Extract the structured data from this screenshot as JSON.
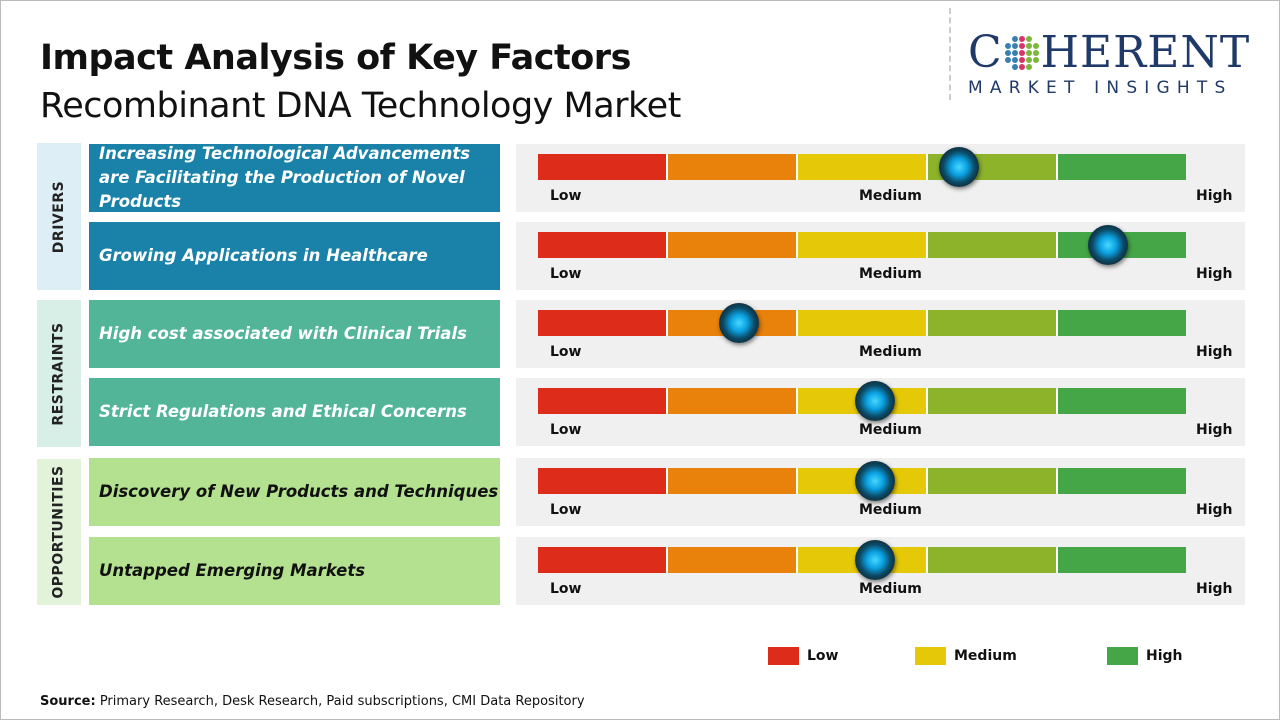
{
  "title": "Impact Analysis of Key Factors",
  "subtitle": "Recombinant DNA Technology Market",
  "logo": {
    "top": "COHERENT",
    "bottom": "MARKET INSIGHTS"
  },
  "scale_labels": {
    "low": "Low",
    "medium": "Medium",
    "high": "High"
  },
  "segment_colors": [
    "#dd2c1a",
    "#e8820a",
    "#e5c908",
    "#8db32a",
    "#44a647"
  ],
  "categories": [
    {
      "label": "DRIVERS",
      "bg": "#deeef6",
      "factor_bg": "#1a82a8",
      "factor_color": "#ffffff"
    },
    {
      "label": "RESTRAINTS",
      "bg": "#d8efe8",
      "factor_bg": "#52b598",
      "factor_color": "#ffffff"
    },
    {
      "label": "OPPORTUNITIES",
      "bg": "#e3f3da",
      "factor_bg": "#b4e18f",
      "factor_color": "#111111"
    }
  ],
  "factors": [
    {
      "category": "DRIVERS",
      "text": "Increasing Technological Advancements are Facilitating the Production of Novel Products",
      "impact_level": 0.65
    },
    {
      "category": "DRIVERS",
      "text": "Growing Applications in Healthcare",
      "impact_level": 0.88
    },
    {
      "category": "RESTRAINTS",
      "text": "High cost associated  with Clinical Trials",
      "impact_level": 0.31
    },
    {
      "category": "RESTRAINTS",
      "text": "Strict Regulations  and Ethical Concerns",
      "impact_level": 0.52
    },
    {
      "category": "OPPORTUNITIES",
      "text": "Discovery of New Products and Techniques",
      "impact_level": 0.52
    },
    {
      "category": "OPPORTUNITIES",
      "text": "Untapped Emerging Markets",
      "impact_level": 0.52
    }
  ],
  "legend": [
    {
      "label": "Low",
      "color": "#dd2c1a"
    },
    {
      "label": "Medium",
      "color": "#e5c908"
    },
    {
      "label": "High",
      "color": "#44a647"
    }
  ],
  "source": {
    "label": "Source:",
    "text": " Primary Research, Desk Research, Paid subscriptions, CMI Data Repository"
  }
}
